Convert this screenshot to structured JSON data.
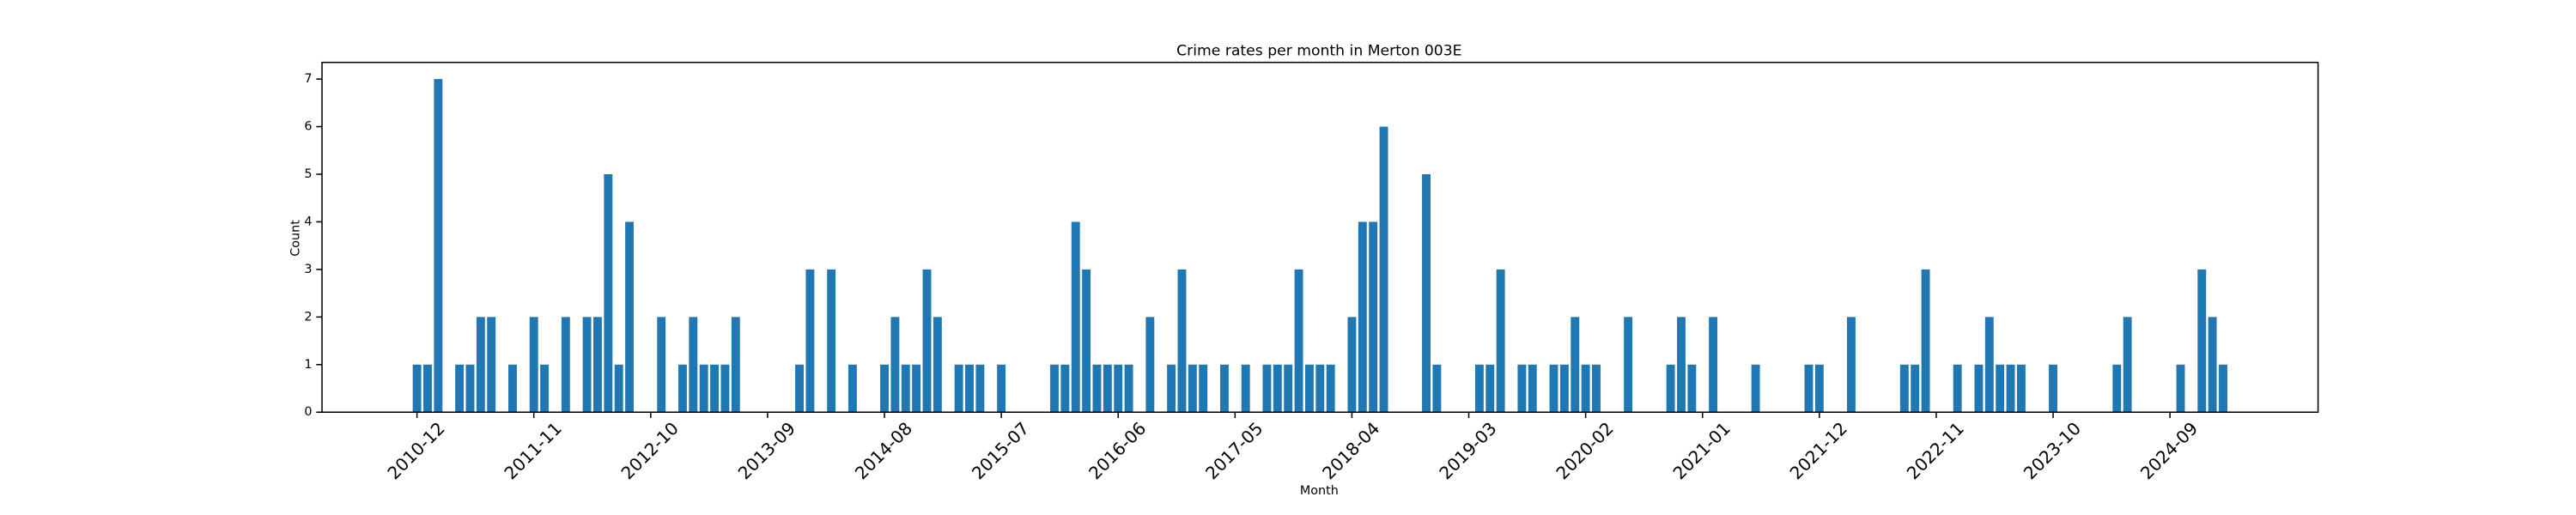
{
  "chart_data": {
    "type": "bar",
    "title": "Crime rates per month in Merton 003E",
    "x_label": "Month",
    "y_label": "Count",
    "color": "#1f77b4",
    "categories": [
      "2010-12",
      null,
      null,
      null,
      null,
      null,
      null,
      null,
      null,
      null,
      null,
      "2011-11",
      null,
      null,
      null,
      null,
      null,
      null,
      null,
      null,
      null,
      null,
      "2012-10",
      null,
      null,
      null,
      null,
      null,
      null,
      null,
      null,
      null,
      null,
      "2013-09",
      null,
      null,
      null,
      null,
      null,
      null,
      null,
      null,
      null,
      null,
      "2014-08",
      null,
      null,
      null,
      null,
      null,
      null,
      null,
      null,
      null,
      null,
      "2015-07",
      null,
      null,
      null,
      null,
      null,
      null,
      null,
      null,
      null,
      null,
      "2016-06",
      null,
      null,
      null,
      null,
      null,
      null,
      null,
      null,
      null,
      null,
      "2017-05",
      null,
      null,
      null,
      null,
      null,
      null,
      null,
      null,
      null,
      null,
      "2018-04",
      null,
      null,
      null,
      null,
      null,
      null,
      null,
      null,
      null,
      null,
      "2019-03",
      null,
      null,
      null,
      null,
      null,
      null,
      null,
      null,
      null,
      null,
      "2020-02",
      null,
      null,
      null,
      null,
      null,
      null,
      null,
      null,
      null,
      null,
      "2021-01",
      null,
      null,
      null,
      null,
      null,
      null,
      null,
      null,
      null,
      null,
      "2021-12",
      null,
      null,
      null,
      null,
      null,
      null,
      null,
      null,
      null,
      null,
      "2022-11",
      null,
      null,
      null,
      null,
      null,
      null,
      null,
      null,
      null,
      null,
      "2023-10",
      null,
      null,
      null,
      null,
      null,
      null,
      null,
      null,
      null,
      null,
      "2024-09",
      null,
      null,
      null,
      null,
      null
    ],
    "values": [
      1,
      1,
      7,
      0,
      1,
      1,
      2,
      2,
      0,
      1,
      0,
      2,
      1,
      0,
      2,
      0,
      2,
      2,
      5,
      1,
      4,
      0,
      0,
      2,
      0,
      1,
      2,
      1,
      1,
      1,
      2,
      0,
      0,
      0,
      0,
      0,
      1,
      3,
      0,
      3,
      0,
      1,
      0,
      0,
      1,
      2,
      1,
      1,
      3,
      2,
      0,
      1,
      1,
      1,
      0,
      1,
      0,
      0,
      0,
      0,
      1,
      1,
      4,
      3,
      1,
      1,
      1,
      1,
      0,
      2,
      0,
      1,
      3,
      1,
      1,
      0,
      1,
      0,
      1,
      0,
      1,
      1,
      1,
      3,
      1,
      1,
      1,
      0,
      2,
      4,
      4,
      6,
      0,
      0,
      0,
      5,
      1,
      0,
      0,
      0,
      1,
      1,
      3,
      0,
      1,
      1,
      0,
      1,
      1,
      2,
      1,
      1,
      0,
      0,
      2,
      0,
      0,
      0,
      1,
      2,
      1,
      0,
      2,
      0,
      0,
      0,
      1,
      0,
      0,
      0,
      0,
      1,
      1,
      0,
      0,
      2,
      0,
      0,
      0,
      0,
      1,
      1,
      3,
      0,
      0,
      1,
      0,
      1,
      2,
      1,
      1,
      1,
      0,
      0,
      1,
      0,
      0,
      0,
      0,
      0,
      1,
      2,
      0,
      0,
      0,
      0,
      1,
      0,
      3,
      2,
      1
    ],
    "ylim": [
      0,
      7.35
    ],
    "yticks": [
      0,
      1,
      2,
      3,
      4,
      5,
      6,
      7
    ],
    "grid": false
  }
}
